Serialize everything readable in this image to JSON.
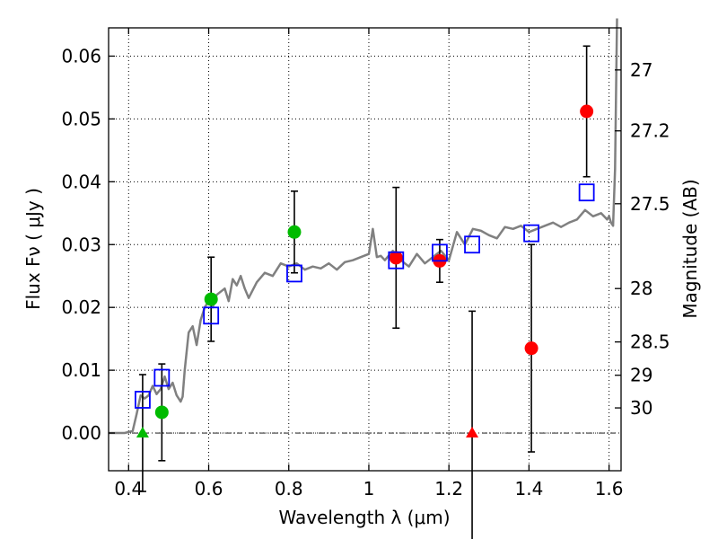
{
  "chart_data": {
    "type": "scatter",
    "title": "",
    "xlabel": "Wavelength  λ (μm)",
    "ylabel": "Flux  Fν  ( μJy )",
    "y2label": "Magnitude (AB)",
    "xlim": [
      0.35,
      1.63
    ],
    "ylim": [
      -0.006,
      0.0645
    ],
    "xticks": [
      0.4,
      0.6,
      0.8,
      1.0,
      1.2,
      1.4,
      1.6
    ],
    "xtick_labels": [
      "0.4",
      "0.6",
      "0.8",
      "1",
      "1.2",
      "1.4",
      "1.6"
    ],
    "yticks": [
      0.0,
      0.01,
      0.02,
      0.03,
      0.04,
      0.05,
      0.06
    ],
    "ytick_labels": [
      "0.00",
      "0.01",
      "0.02",
      "0.03",
      "0.04",
      "0.05",
      "0.06"
    ],
    "y2ticks": [
      {
        "label": "27",
        "flux": 0.0578
      },
      {
        "label": "27.2",
        "flux": 0.0481
      },
      {
        "label": "27.5",
        "flux": 0.0365
      },
      {
        "label": "28",
        "flux": 0.023
      },
      {
        "label": "28.5",
        "flux": 0.0145
      },
      {
        "label": "29",
        "flux": 0.0092
      },
      {
        "label": "30",
        "flux": 0.004
      }
    ],
    "grid": true,
    "zero_line": {
      "y": 0.0,
      "style": "dash-dot"
    },
    "colors": {
      "model": "#808080",
      "green": "#00bb00",
      "red": "#ff0000",
      "blue": "#0000ff",
      "error": "#000000"
    },
    "series": [
      {
        "name": "model SED",
        "type": "line",
        "color": "#808080",
        "x": [
          0.35,
          0.37,
          0.39,
          0.41,
          0.42,
          0.43,
          0.44,
          0.45,
          0.46,
          0.47,
          0.48,
          0.49,
          0.5,
          0.51,
          0.52,
          0.525,
          0.53,
          0.535,
          0.54,
          0.55,
          0.56,
          0.57,
          0.58,
          0.59,
          0.6,
          0.61,
          0.62,
          0.63,
          0.64,
          0.65,
          0.66,
          0.67,
          0.68,
          0.69,
          0.7,
          0.72,
          0.74,
          0.76,
          0.78,
          0.8,
          0.82,
          0.84,
          0.86,
          0.88,
          0.9,
          0.92,
          0.94,
          0.96,
          0.98,
          1.0,
          1.01,
          1.02,
          1.03,
          1.04,
          1.06,
          1.08,
          1.1,
          1.12,
          1.14,
          1.16,
          1.18,
          1.2,
          1.22,
          1.24,
          1.26,
          1.28,
          1.3,
          1.32,
          1.34,
          1.36,
          1.38,
          1.4,
          1.42,
          1.44,
          1.46,
          1.48,
          1.5,
          1.52,
          1.54,
          1.56,
          1.58,
          1.595,
          1.6,
          1.605,
          1.61,
          1.615,
          1.62
        ],
        "values": [
          0.0,
          0.0,
          0.0,
          0.0003,
          0.003,
          0.006,
          0.0055,
          0.006,
          0.0075,
          0.0062,
          0.007,
          0.009,
          0.007,
          0.008,
          0.006,
          0.0055,
          0.005,
          0.0058,
          0.01,
          0.016,
          0.017,
          0.014,
          0.018,
          0.02,
          0.021,
          0.02,
          0.022,
          0.0225,
          0.023,
          0.021,
          0.0245,
          0.0235,
          0.025,
          0.023,
          0.0215,
          0.024,
          0.0255,
          0.025,
          0.027,
          0.0265,
          0.027,
          0.026,
          0.0265,
          0.0262,
          0.027,
          0.026,
          0.0272,
          0.0275,
          0.028,
          0.0285,
          0.0325,
          0.028,
          0.0282,
          0.0275,
          0.029,
          0.0275,
          0.0265,
          0.0285,
          0.027,
          0.028,
          0.029,
          0.0275,
          0.032,
          0.03,
          0.0325,
          0.0322,
          0.0315,
          0.031,
          0.0328,
          0.0325,
          0.033,
          0.032,
          0.0325,
          0.033,
          0.0335,
          0.0328,
          0.0335,
          0.034,
          0.0355,
          0.0345,
          0.035,
          0.034,
          0.0345,
          0.0335,
          0.033,
          0.042,
          0.066
        ]
      },
      {
        "name": "green detections",
        "type": "scatter",
        "marker": "circle",
        "color": "#00bb00",
        "points": [
          {
            "x": 0.483,
            "y": 0.0033,
            "err": 0.0077
          },
          {
            "x": 0.606,
            "y": 0.0213,
            "err": 0.0067
          },
          {
            "x": 0.814,
            "y": 0.032,
            "err": 0.0065
          }
        ]
      },
      {
        "name": "green upper limit",
        "type": "scatter",
        "marker": "triangle",
        "color": "#00bb00",
        "points": [
          {
            "x": 0.435,
            "y": 0.0,
            "err": 0.0093
          }
        ]
      },
      {
        "name": "red detections",
        "type": "scatter",
        "marker": "circle",
        "color": "#ff0000",
        "points": [
          {
            "x": 1.068,
            "y": 0.0279,
            "err": 0.0112
          },
          {
            "x": 1.177,
            "y": 0.0274,
            "err": 0.0034
          },
          {
            "x": 1.406,
            "y": 0.0135,
            "err": 0.0165
          },
          {
            "x": 1.544,
            "y": 0.0512,
            "err": 0.0104
          }
        ]
      },
      {
        "name": "red upper limit",
        "type": "scatter",
        "marker": "triangle",
        "color": "#ff0000",
        "points": [
          {
            "x": 1.258,
            "y": 0.0,
            "err": 0.0194
          }
        ]
      },
      {
        "name": "model photometry",
        "type": "scatter",
        "marker": "open-square",
        "color": "#0000ff",
        "points": [
          {
            "x": 0.435,
            "y": 0.0053
          },
          {
            "x": 0.483,
            "y": 0.0088
          },
          {
            "x": 0.606,
            "y": 0.0187
          },
          {
            "x": 0.814,
            "y": 0.0254
          },
          {
            "x": 1.068,
            "y": 0.0275
          },
          {
            "x": 1.177,
            "y": 0.0287
          },
          {
            "x": 1.258,
            "y": 0.03
          },
          {
            "x": 1.406,
            "y": 0.0318
          },
          {
            "x": 1.544,
            "y": 0.0383
          }
        ]
      }
    ]
  }
}
